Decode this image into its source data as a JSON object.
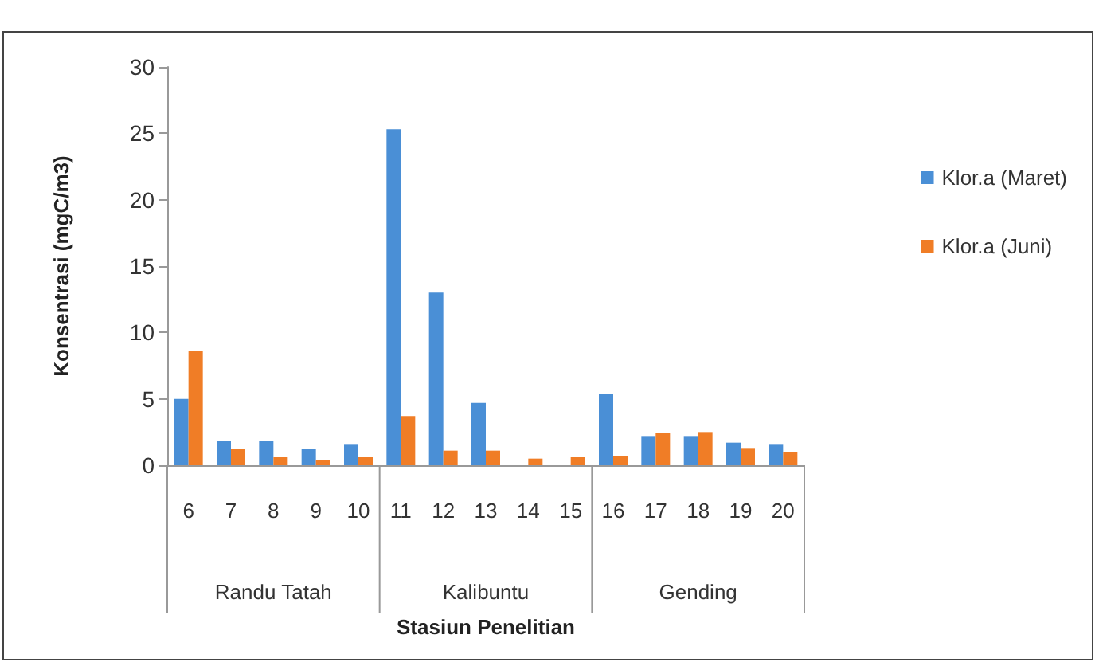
{
  "chart_data": {
    "type": "bar",
    "xlabel": "Stasiun Penelitian",
    "ylabel": "Konsentrasi (mgC/m3)",
    "categories": [
      "6",
      "7",
      "8",
      "9",
      "10",
      "11",
      "12",
      "13",
      "14",
      "15",
      "16",
      "17",
      "18",
      "19",
      "20"
    ],
    "series": [
      {
        "name": "Klor.a (Maret)",
        "color": "#4a8fd6",
        "values": [
          5.0,
          1.8,
          1.8,
          1.2,
          1.6,
          25.3,
          13.0,
          4.7,
          0,
          0,
          5.4,
          2.2,
          2.2,
          1.7,
          1.6
        ]
      },
      {
        "name": "Klor.a (Juni)",
        "color": "#f07d26",
        "values": [
          8.6,
          1.2,
          0.6,
          0.4,
          0.6,
          3.7,
          1.1,
          1.1,
          0.5,
          0.6,
          0.7,
          2.4,
          2.5,
          1.3,
          1.0
        ]
      }
    ],
    "annotations": [
      "Randu Tatah",
      "Kalibuntu",
      "Gending"
    ],
    "ylim": [
      0,
      30
    ],
    "yticks": [
      0,
      5,
      10,
      15,
      20,
      25,
      30
    ],
    "grid": false,
    "legend": "right"
  }
}
